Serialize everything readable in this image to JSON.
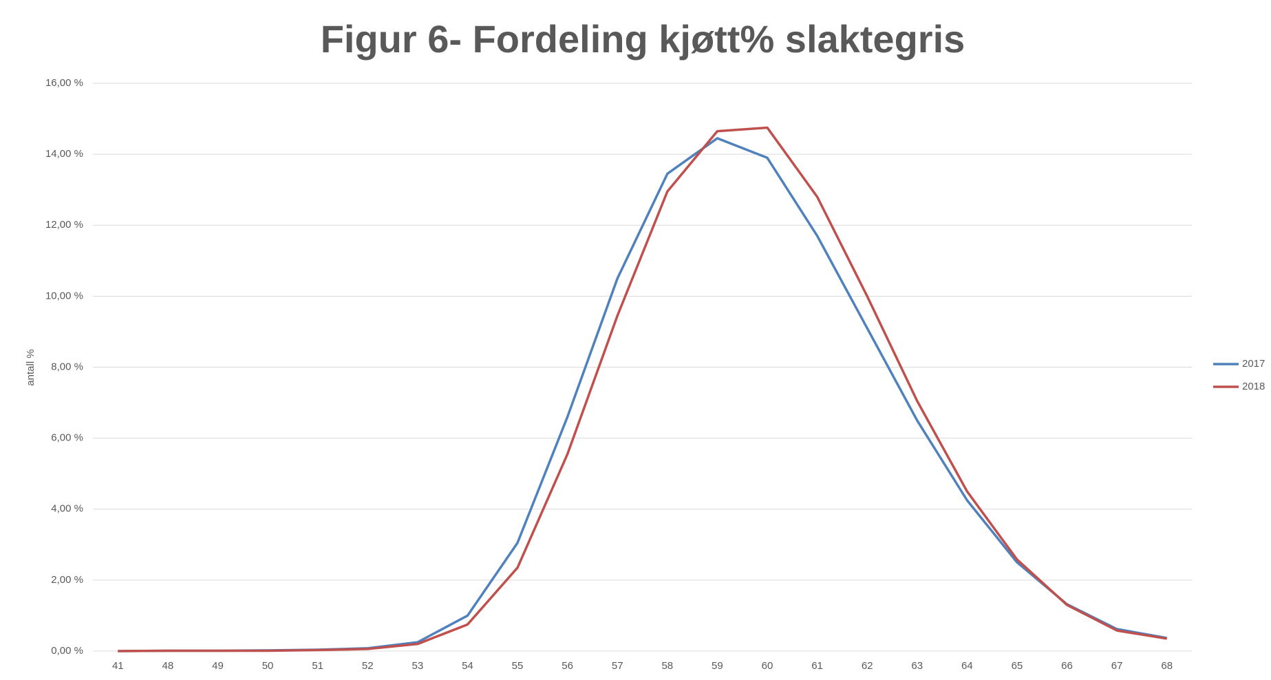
{
  "chart_data": {
    "type": "line",
    "title": "Figur 6- Fordeling kjøtt% slaktegris",
    "y_label": "antall %",
    "categories": [
      "41",
      "48",
      "49",
      "50",
      "51",
      "52",
      "53",
      "54",
      "55",
      "56",
      "57",
      "58",
      "59",
      "60",
      "61",
      "62",
      "63",
      "64",
      "65",
      "66",
      "67",
      "68"
    ],
    "series": [
      {
        "name": "2017",
        "color": "#4f81bd",
        "values": [
          0,
          0.01,
          0.01,
          0.02,
          0.04,
          0.08,
          0.25,
          1.0,
          3.05,
          6.6,
          10.5,
          13.45,
          14.45,
          13.9,
          11.7,
          9.1,
          6.5,
          4.25,
          2.5,
          1.32,
          0.62,
          0.37
        ]
      },
      {
        "name": "2018",
        "color": "#c0504d",
        "values": [
          0,
          0.01,
          0.01,
          0.01,
          0.03,
          0.06,
          0.2,
          0.75,
          2.35,
          5.55,
          9.45,
          12.95,
          14.65,
          14.75,
          12.8,
          10.0,
          7.05,
          4.5,
          2.58,
          1.3,
          0.58,
          0.35
        ]
      }
    ],
    "ylim": [
      0,
      16
    ],
    "yticks": [
      {
        "value": 0,
        "label": "0,00 %"
      },
      {
        "value": 2,
        "label": "2,00 %"
      },
      {
        "value": 4,
        "label": "4,00 %"
      },
      {
        "value": 6,
        "label": "6,00 %"
      },
      {
        "value": 8,
        "label": "8,00 %"
      },
      {
        "value": 10,
        "label": "10,00 %"
      },
      {
        "value": 12,
        "label": "12,00 %"
      },
      {
        "value": 14,
        "label": "14,00 %"
      },
      {
        "value": 16,
        "label": "16,00 %"
      }
    ],
    "grid": true,
    "legend": "right"
  }
}
